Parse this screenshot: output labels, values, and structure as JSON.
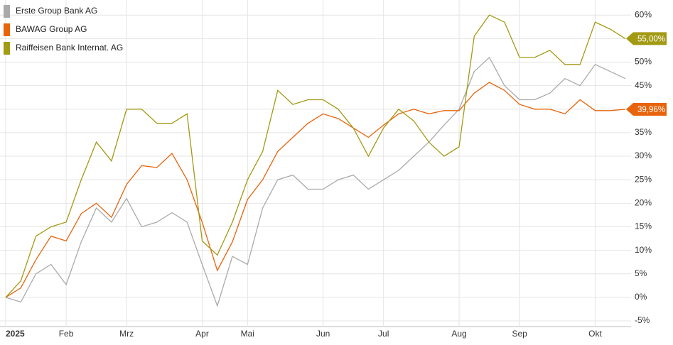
{
  "chart_data": {
    "type": "line",
    "categories": [
      "2025",
      null,
      null,
      null,
      "Feb",
      null,
      null,
      null,
      "Mrz",
      null,
      null,
      null,
      null,
      "Apr",
      null,
      null,
      "Mai",
      null,
      null,
      null,
      null,
      "Jun",
      null,
      null,
      null,
      "Jul",
      null,
      null,
      null,
      null,
      "Aug",
      null,
      null,
      null,
      "Sep",
      null,
      null,
      null,
      null,
      "Okt",
      null,
      null
    ],
    "series": [
      {
        "name": "Erste Group Bank AG",
        "color": "#aaaaaa",
        "values": [
          0,
          -1,
          5,
          7,
          2.7,
          11.8,
          19,
          16,
          21,
          15,
          16,
          18,
          16,
          7,
          -1.8,
          8.7,
          7,
          19,
          25,
          26,
          23,
          23,
          25,
          26,
          23,
          25,
          27,
          30,
          33,
          36.6,
          40,
          48,
          51,
          45,
          42,
          42,
          43.4,
          46.5,
          45,
          49.5,
          48,
          46.5
        ]
      },
      {
        "name": "BAWAG Group AG",
        "color": "#e8640c",
        "end_label": "39,96%",
        "values": [
          0,
          2,
          8,
          13,
          12,
          17.8,
          20,
          17,
          24,
          28,
          27.6,
          30.6,
          25,
          16,
          5.7,
          11.8,
          20.8,
          25,
          31,
          34,
          37,
          39,
          38,
          36,
          34,
          36.6,
          39,
          40,
          39,
          39.7,
          39.7,
          43.4,
          45.7,
          44,
          41,
          40,
          40,
          39,
          42,
          39.7,
          39.7,
          39.96
        ]
      },
      {
        "name": "Raiffeisen Bank Internat. AG",
        "color": "#a39a14",
        "end_label": "55,00%",
        "values": [
          0,
          3.5,
          13,
          15,
          16,
          25,
          33,
          29,
          40,
          40,
          37,
          37,
          39,
          12,
          9,
          16,
          25,
          31,
          44,
          41,
          42,
          42,
          40,
          36,
          30,
          36,
          40,
          37.5,
          33,
          30,
          32,
          55.5,
          60,
          58.5,
          51,
          51,
          52.5,
          49.5,
          49.5,
          58.5,
          57,
          55
        ]
      }
    ],
    "ylim": [
      -6.2,
      63.2
    ],
    "yticks": [
      {
        "value": -5,
        "label": "-5%"
      },
      {
        "value": 0,
        "label": "0%"
      },
      {
        "value": 5,
        "label": "5%"
      },
      {
        "value": 10,
        "label": "10%"
      },
      {
        "value": 15,
        "label": "15%"
      },
      {
        "value": 20,
        "label": "20%"
      },
      {
        "value": 25,
        "label": "25%"
      },
      {
        "value": 30,
        "label": "30%"
      },
      {
        "value": 35,
        "label": "35%"
      },
      {
        "value": 40,
        "label": "40%"
      },
      {
        "value": 45,
        "label": "45%"
      },
      {
        "value": 50,
        "label": "50%"
      },
      {
        "value": 55,
        "label": "55%"
      },
      {
        "value": 60,
        "label": "60%"
      }
    ],
    "grid": true
  }
}
